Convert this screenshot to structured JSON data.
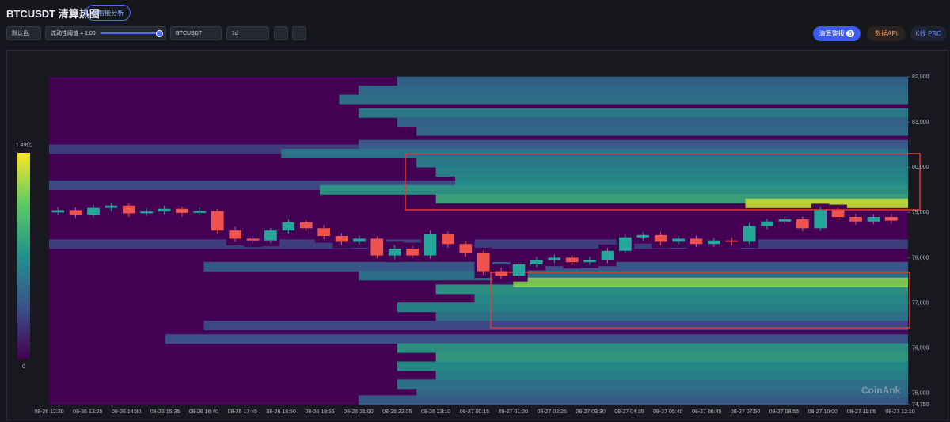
{
  "header": {
    "title": "BTCUSDT 清算热图",
    "ai_button": "AI智能分析"
  },
  "toolbar": {
    "color_select": "默认色",
    "threshold_label": "流动性阈值 = 1.00",
    "symbol": "BTCUSDT",
    "interval": "1d",
    "alert_button": "清算警报",
    "alert_count": "6",
    "api_button": "数据API",
    "pro_button": "K线 PRO"
  },
  "chart_data": {
    "type": "heatmap",
    "watermark": "CoinAnk",
    "x": [
      "08-26 12:20",
      "08-26 13:25",
      "08-26 14:30",
      "08-26 15:35",
      "08-26 16:40",
      "08-26 17:45",
      "08-26 18:50",
      "08-26 19:55",
      "08-26 21:00",
      "08-26 22:05",
      "08-26 23:10",
      "08-27 00:15",
      "08-27 01:20",
      "08-27 02:25",
      "08-27 03:30",
      "08-27 04:35",
      "08-27 05:40",
      "08-27 06:45",
      "08-27 07:50",
      "08-27 08:55",
      "08-27 10:00",
      "08-27 11:05",
      "08-27 12:10"
    ],
    "ylim": [
      74750,
      82000
    ],
    "yticks": [
      {
        "value": 74750,
        "label": "74,750"
      },
      {
        "value": 75000,
        "label": "75,000"
      },
      {
        "value": 76000,
        "label": "76,000"
      },
      {
        "value": 77000,
        "label": "77,000"
      },
      {
        "value": 78000,
        "label": "78,000"
      },
      {
        "value": 79000,
        "label": "79,000"
      },
      {
        "value": 80000,
        "label": "80,000"
      },
      {
        "value": 81000,
        "label": "81,000"
      },
      {
        "value": 82000,
        "label": "82,000"
      }
    ],
    "colorbar": {
      "min": 0,
      "max": {
        "value": 1.49,
        "label": "1.49亿"
      }
    },
    "bands": {
      "price": [
        80400,
        79600,
        78300,
        81900,
        81700,
        81500,
        81200,
        81000,
        80800,
        80500,
        80300,
        80100,
        79900,
        79700,
        79500,
        79300,
        79200,
        77800,
        77600,
        77300,
        77100,
        76900,
        76700,
        76500,
        76200,
        76000,
        75800,
        75600,
        75400,
        75200,
        75000,
        74850,
        77450
      ],
      "start": [
        0,
        0,
        0,
        9,
        8,
        7.5,
        8,
        9,
        9.5,
        8,
        6,
        9.5,
        10,
        10.5,
        7,
        10,
        18,
        4,
        8,
        10,
        11,
        9,
        10,
        4,
        3,
        9,
        10,
        9,
        10,
        9,
        9.5,
        8,
        12
      ],
      "intensity": [
        0.3,
        0.35,
        0.3,
        0.5,
        0.55,
        0.6,
        0.65,
        0.5,
        0.55,
        0.45,
        0.6,
        0.65,
        0.7,
        0.75,
        0.8,
        0.9,
        1.35,
        0.45,
        0.6,
        0.8,
        0.75,
        0.7,
        0.6,
        0.35,
        0.4,
        0.8,
        0.85,
        0.75,
        0.7,
        0.6,
        0.55,
        0.45,
        1.2
      ]
    },
    "candles": {
      "up_color": "#26a69a",
      "down_color": "#ef5350",
      "open": [
        79000,
        79050,
        78950,
        79100,
        79150,
        78980,
        79020,
        79080,
        78990,
        79030,
        78600,
        78420,
        78380,
        78600,
        78780,
        78650,
        78480,
        78350,
        78420,
        78050,
        78200,
        78050,
        78520,
        78300,
        78100,
        77700,
        77600,
        77850,
        77950,
        78000,
        77900,
        77950,
        78150,
        78450,
        78500,
        78350,
        78420,
        78300,
        78380,
        78350,
        78700,
        78800,
        78850,
        78650,
        79050,
        78900,
        78800,
        78900
      ],
      "high": [
        79120,
        79110,
        79170,
        79220,
        79200,
        79090,
        79150,
        79130,
        79100,
        79080,
        78680,
        78490,
        78660,
        78850,
        78830,
        78720,
        78540,
        78490,
        78470,
        78280,
        78260,
        78600,
        78580,
        78360,
        78150,
        77780,
        77910,
        78020,
        78070,
        78060,
        78030,
        78220,
        78520,
        78560,
        78570,
        78480,
        78490,
        78440,
        78450,
        78770,
        78860,
        78920,
        78910,
        79120,
        79100,
        78970,
        78960,
        78970
      ],
      "low": [
        78930,
        78880,
        78890,
        79030,
        78900,
        78920,
        78960,
        78910,
        78930,
        78520,
        78340,
        78300,
        78320,
        78530,
        78580,
        78400,
        78280,
        78290,
        77980,
        77970,
        77990,
        77980,
        78220,
        78030,
        77620,
        77530,
        77540,
        77790,
        77880,
        77830,
        77840,
        77880,
        78090,
        78380,
        78280,
        78290,
        78230,
        78240,
        78270,
        78290,
        78630,
        78740,
        78580,
        78590,
        78830,
        78730,
        78740,
        78750
      ],
      "close": [
        79050,
        78950,
        79100,
        79150,
        78980,
        79020,
        79080,
        78990,
        79030,
        78600,
        78420,
        78380,
        78600,
        78780,
        78650,
        78480,
        78350,
        78420,
        78050,
        78200,
        78050,
        78520,
        78300,
        78100,
        77700,
        77600,
        77850,
        77950,
        78000,
        77900,
        77950,
        78150,
        78450,
        78500,
        78350,
        78420,
        78300,
        78380,
        78350,
        78700,
        78800,
        78850,
        78650,
        79050,
        78900,
        78800,
        78900,
        78820
      ]
    }
  }
}
